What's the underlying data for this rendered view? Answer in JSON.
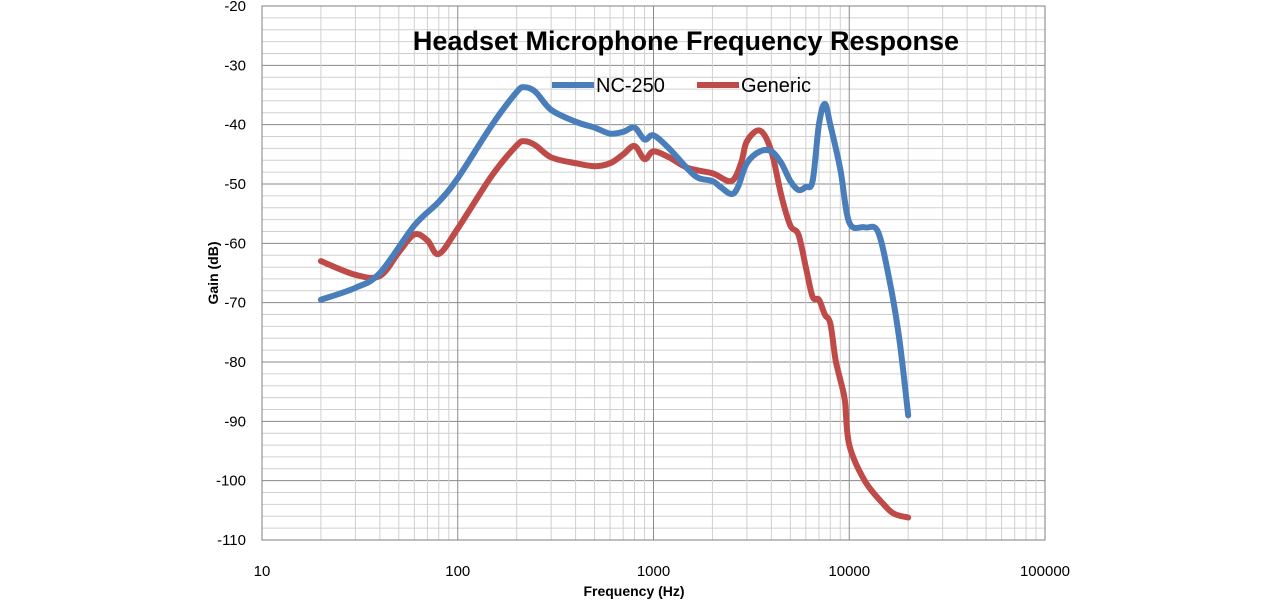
{
  "chart_data": {
    "type": "line",
    "title": "Headset Microphone Frequency Response",
    "xlabel": "Frequency (Hz)",
    "ylabel": "Gain (dB)",
    "x_scale": "log",
    "xlim": [
      10,
      100000
    ],
    "ylim": [
      -110,
      -20
    ],
    "x_ticks": [
      10,
      100,
      1000,
      10000,
      100000
    ],
    "x_tick_labels": [
      "10",
      "100",
      "1000",
      "10000",
      "100000"
    ],
    "y_ticks": [
      -20,
      -30,
      -40,
      -50,
      -60,
      -70,
      -80,
      -90,
      -100,
      -110
    ],
    "y_tick_labels": [
      "-20",
      "-30",
      "-40",
      "-50",
      "-60",
      "-70",
      "-80",
      "-90",
      "-100",
      "-110"
    ],
    "grid": true,
    "legend": "top-center",
    "series": [
      {
        "name": "NC-250",
        "color": "#4a7ebb",
        "points": [
          [
            20,
            -69.5
          ],
          [
            30,
            -67.5
          ],
          [
            40,
            -65
          ],
          [
            60,
            -57
          ],
          [
            80,
            -53
          ],
          [
            100,
            -49
          ],
          [
            150,
            -40
          ],
          [
            200,
            -34.5
          ],
          [
            220,
            -33.7
          ],
          [
            250,
            -34.5
          ],
          [
            300,
            -37.5
          ],
          [
            400,
            -39.5
          ],
          [
            500,
            -40.5
          ],
          [
            600,
            -41.5
          ],
          [
            700,
            -41.2
          ],
          [
            800,
            -40.5
          ],
          [
            900,
            -42.5
          ],
          [
            1000,
            -41.8
          ],
          [
            1200,
            -44
          ],
          [
            1500,
            -47.5
          ],
          [
            1700,
            -49
          ],
          [
            2000,
            -49.5
          ],
          [
            2200,
            -50.5
          ],
          [
            2500,
            -51.7
          ],
          [
            2700,
            -50.5
          ],
          [
            3000,
            -46.5
          ],
          [
            3500,
            -44.5
          ],
          [
            4000,
            -44.5
          ],
          [
            4500,
            -46.5
          ],
          [
            5000,
            -49.5
          ],
          [
            5500,
            -51
          ],
          [
            6000,
            -50.5
          ],
          [
            6500,
            -49.5
          ],
          [
            7000,
            -40
          ],
          [
            7500,
            -36.5
          ],
          [
            8000,
            -40
          ],
          [
            9000,
            -47.5
          ],
          [
            10000,
            -56.5
          ],
          [
            12000,
            -57.3
          ],
          [
            14000,
            -58
          ],
          [
            16000,
            -66
          ],
          [
            18000,
            -76
          ],
          [
            20000,
            -89
          ]
        ]
      },
      {
        "name": "Generic",
        "color": "#be4b48",
        "points": [
          [
            20,
            -63
          ],
          [
            30,
            -65.3
          ],
          [
            40,
            -65.5
          ],
          [
            50,
            -61.5
          ],
          [
            60,
            -58.5
          ],
          [
            70,
            -59.5
          ],
          [
            80,
            -61.8
          ],
          [
            100,
            -57.5
          ],
          [
            150,
            -48.5
          ],
          [
            200,
            -43.5
          ],
          [
            220,
            -42.8
          ],
          [
            250,
            -43.5
          ],
          [
            300,
            -45.5
          ],
          [
            400,
            -46.5
          ],
          [
            500,
            -47
          ],
          [
            600,
            -46.5
          ],
          [
            700,
            -45
          ],
          [
            800,
            -43.6
          ],
          [
            900,
            -45.8
          ],
          [
            1000,
            -44.5
          ],
          [
            1200,
            -45.5
          ],
          [
            1500,
            -47.3
          ],
          [
            2000,
            -48.2
          ],
          [
            2500,
            -49.5
          ],
          [
            2800,
            -46.5
          ],
          [
            3000,
            -42.8
          ],
          [
            3500,
            -41
          ],
          [
            4000,
            -44.5
          ],
          [
            4500,
            -52
          ],
          [
            5000,
            -57
          ],
          [
            5500,
            -58.5
          ],
          [
            6000,
            -64
          ],
          [
            6500,
            -69
          ],
          [
            7000,
            -69.5
          ],
          [
            7500,
            -72
          ],
          [
            8000,
            -73.5
          ],
          [
            8500,
            -79.5
          ],
          [
            9000,
            -83
          ],
          [
            9500,
            -86.5
          ],
          [
            10000,
            -94
          ],
          [
            12000,
            -100
          ],
          [
            15000,
            -104
          ],
          [
            17000,
            -105.6
          ],
          [
            20000,
            -106.2
          ]
        ]
      }
    ]
  }
}
